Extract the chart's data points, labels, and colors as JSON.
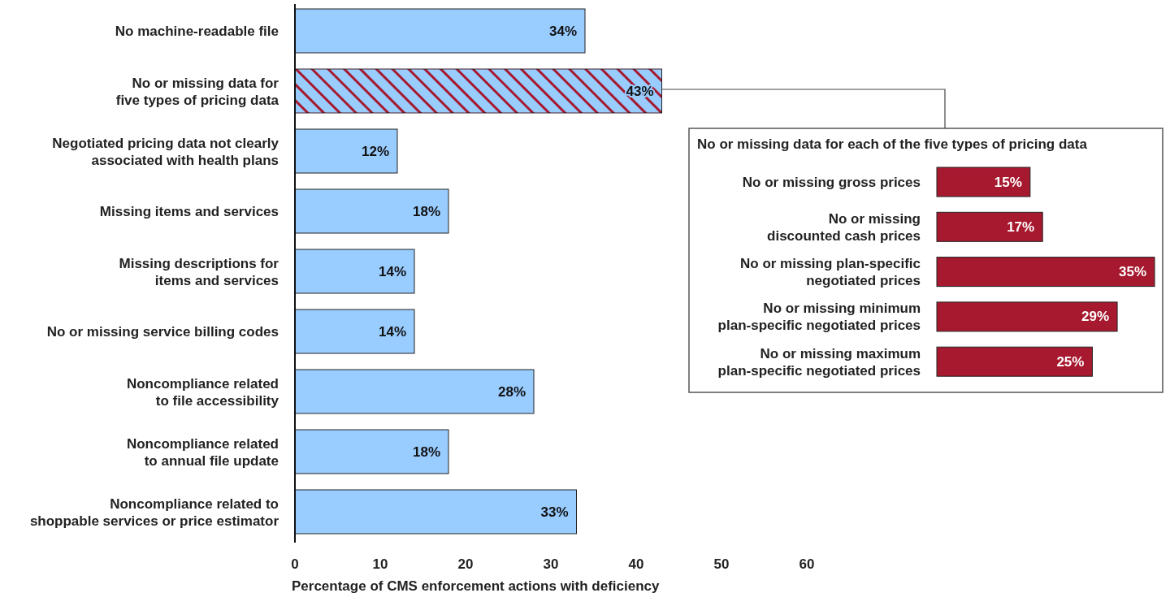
{
  "chart_data": [
    {
      "type": "bar",
      "orientation": "horizontal",
      "xlabel": "Percentage of CMS enforcement actions with deficiency",
      "categories": [
        "No machine-readable file",
        "No or missing data for\nfive types of pricing data",
        "Negotiated pricing data not clearly\nassociated with health plans",
        "Missing items and services",
        "Missing descriptions for\nitems and services",
        "No or missing service billing codes",
        "Noncompliance related\nto file accessibility",
        "Noncompliance related\nto annual file update",
        "Noncompliance related to\nshoppable services or price estimator"
      ],
      "values": [
        34,
        43,
        12,
        18,
        14,
        14,
        28,
        18,
        33
      ],
      "value_labels": [
        "34%",
        "43%",
        "12%",
        "18%",
        "14%",
        "14%",
        "28%",
        "18%",
        "33%"
      ],
      "color": "#99ccff",
      "colors": [
        "#99ccff",
        "#a6192e",
        "#99ccff",
        "#99ccff",
        "#99ccff",
        "#99ccff",
        "#99ccff",
        "#99ccff",
        "#99ccff"
      ],
      "xlim": [
        0,
        60
      ],
      "xticks": [
        0,
        10,
        20,
        30,
        40,
        50,
        60
      ]
    },
    {
      "type": "bar",
      "orientation": "horizontal",
      "title": "No or missing data for each of the five types of pricing data",
      "categories": [
        "No or missing gross prices",
        "No or missing\ndiscounted cash prices",
        "No or missing plan-specific\nnegotiated prices",
        "No or missing minimum\nplan-specific negotiated prices",
        "No or missing maximum\nplan-specific negotiated prices"
      ],
      "values": [
        15,
        17,
        35,
        29,
        25
      ],
      "value_labels": [
        "15%",
        "17%",
        "35%",
        "29%",
        "25%"
      ],
      "color": "#a6192e"
    }
  ]
}
